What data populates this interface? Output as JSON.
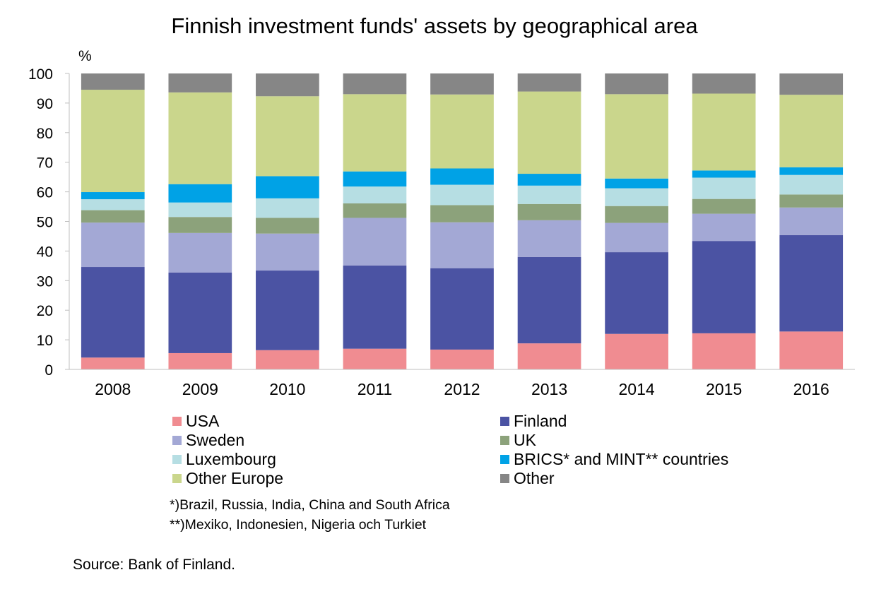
{
  "chart_data": {
    "type": "bar",
    "stacked": true,
    "title": "Finnish investment funds' assets by geographical area",
    "ylabel": "%",
    "xlabel": "",
    "ylim": [
      0,
      100
    ],
    "yticks": [
      0,
      10,
      20,
      30,
      40,
      50,
      60,
      70,
      80,
      90,
      100
    ],
    "grid": false,
    "legend_position": "bottom",
    "categories": [
      "2008",
      "2009",
      "2010",
      "2011",
      "2012",
      "2013",
      "2014",
      "2015",
      "2016"
    ],
    "series": [
      {
        "name": "USA",
        "color": "#F08C91",
        "values": [
          4.0,
          5.5,
          6.5,
          7.0,
          6.7,
          8.8,
          12.0,
          12.2,
          12.8
        ]
      },
      {
        "name": "Finland",
        "color": "#4B53A3",
        "values": [
          30.6,
          27.2,
          26.9,
          28.1,
          27.5,
          29.2,
          27.6,
          31.2,
          32.6
        ]
      },
      {
        "name": "Sweden",
        "color": "#A3A8D5",
        "values": [
          15.0,
          13.4,
          12.5,
          16.1,
          15.5,
          12.4,
          9.9,
          9.2,
          9.3
        ]
      },
      {
        "name": "UK",
        "color": "#8CA27B",
        "values": [
          4.2,
          5.4,
          5.3,
          4.9,
          5.8,
          5.5,
          5.7,
          5.0,
          4.4
        ]
      },
      {
        "name": "Luxembourg",
        "color": "#B6DEE3",
        "values": [
          3.7,
          4.9,
          6.6,
          5.7,
          6.9,
          6.2,
          6.0,
          7.2,
          6.6
        ]
      },
      {
        "name": "BRICS* and MINT** countries",
        "color": "#00A2E6",
        "values": [
          2.4,
          6.2,
          7.5,
          5.1,
          5.5,
          4.0,
          3.3,
          2.4,
          2.6
        ]
      },
      {
        "name": "Other Europe",
        "color": "#CAD68C",
        "values": [
          34.6,
          31.0,
          27.0,
          26.1,
          25.0,
          27.8,
          28.5,
          26.0,
          24.5
        ]
      },
      {
        "name": "Other",
        "color": "#868686",
        "values": [
          5.5,
          6.4,
          7.7,
          7.0,
          7.1,
          6.1,
          7.0,
          6.8,
          7.2
        ]
      }
    ]
  },
  "notes": [
    "*)Brazil, Russia, India, China and South Africa",
    "**)Mexiko, Indonesien, Nigeria och Turkiet"
  ],
  "source": "Source: Bank of Finland."
}
